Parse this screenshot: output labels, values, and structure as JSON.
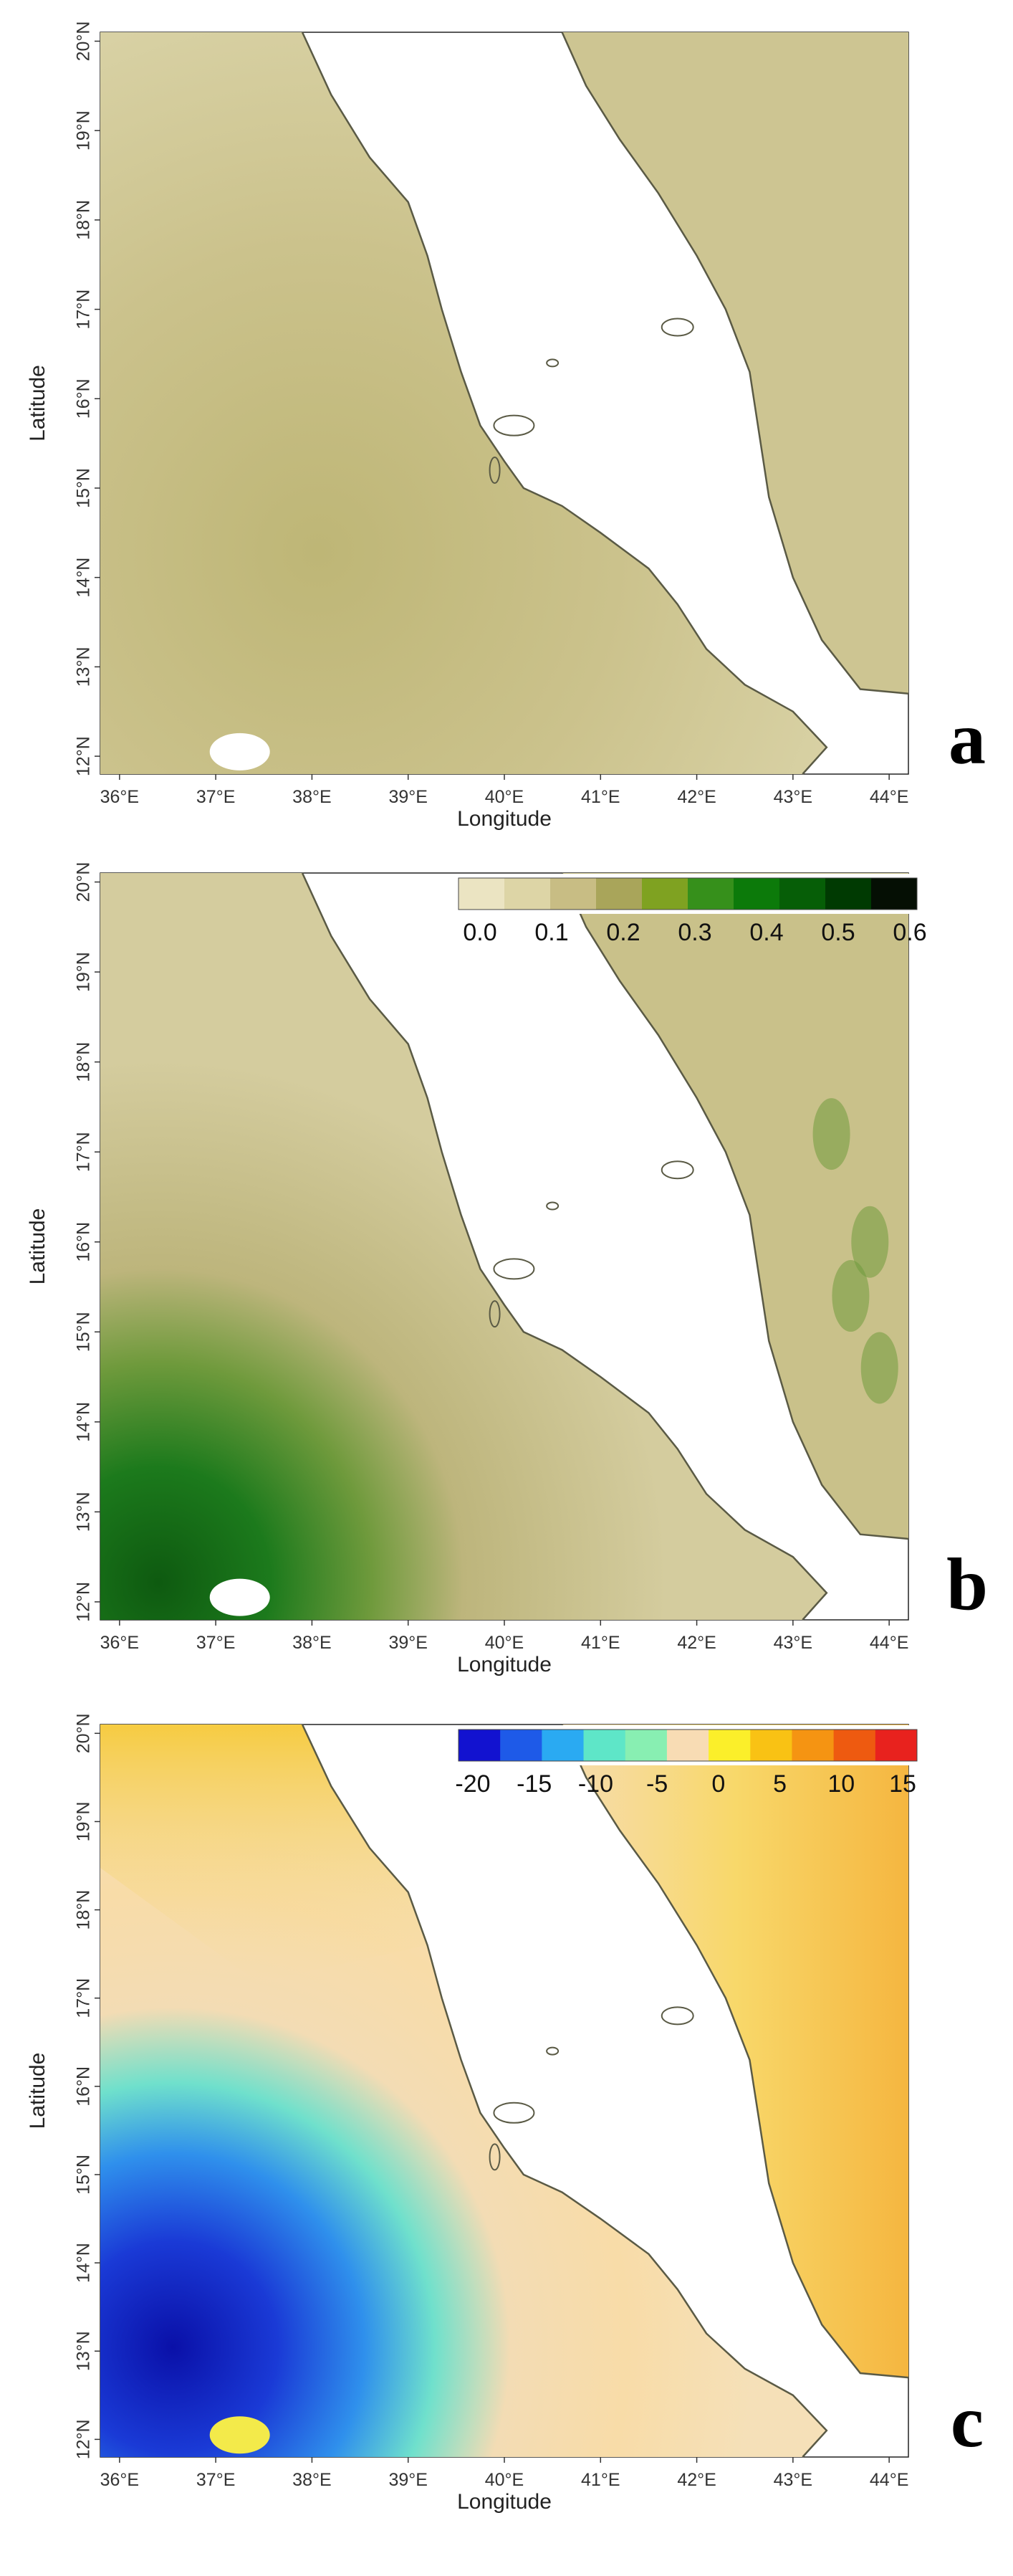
{
  "panels": [
    {
      "id": "a",
      "label": "a",
      "colorbar": null
    },
    {
      "id": "b",
      "label": "b",
      "colorbar": {
        "colors": [
          "#ebe4c2",
          "#ddd5a6",
          "#c8bd84",
          "#a9a55a",
          "#7fa221",
          "#36901b",
          "#0c7a0a",
          "#065e07",
          "#003a02",
          "#050f04"
        ],
        "labels": [
          "0.0",
          "0.1",
          "0.2",
          "0.3",
          "0.4",
          "0.5",
          "0.6"
        ]
      }
    },
    {
      "id": "c",
      "label": "c",
      "colorbar": {
        "colors": [
          "#1212d0",
          "#1e5ae8",
          "#2aaaf2",
          "#5ee6c8",
          "#88efb2",
          "#f8dcb4",
          "#fbef2a",
          "#f9c214",
          "#f59412",
          "#ee5a10",
          "#e8221e"
        ],
        "labels": [
          "-20",
          "-15",
          "-10",
          "-5",
          "0",
          "5",
          "10",
          "15"
        ]
      }
    }
  ],
  "axes": {
    "x_label": "Longitude",
    "y_label": "Latitude",
    "x_ticks": [
      "36°E",
      "37°E",
      "38°E",
      "39°E",
      "40°E",
      "41°E",
      "42°E",
      "43°E",
      "44°E"
    ],
    "y_ticks": [
      "20°N",
      "19°N",
      "18°N",
      "17°N",
      "16°N",
      "15°N",
      "14°N",
      "13°N",
      "12°N"
    ],
    "lon_range": [
      35.8,
      44.2
    ],
    "lat_range": [
      11.8,
      20.1
    ]
  },
  "colors": {
    "sea": "#ffffff",
    "coastline": "#5a5a45",
    "land_a": "#cfc793",
    "land_b": "#d3cb9a"
  }
}
